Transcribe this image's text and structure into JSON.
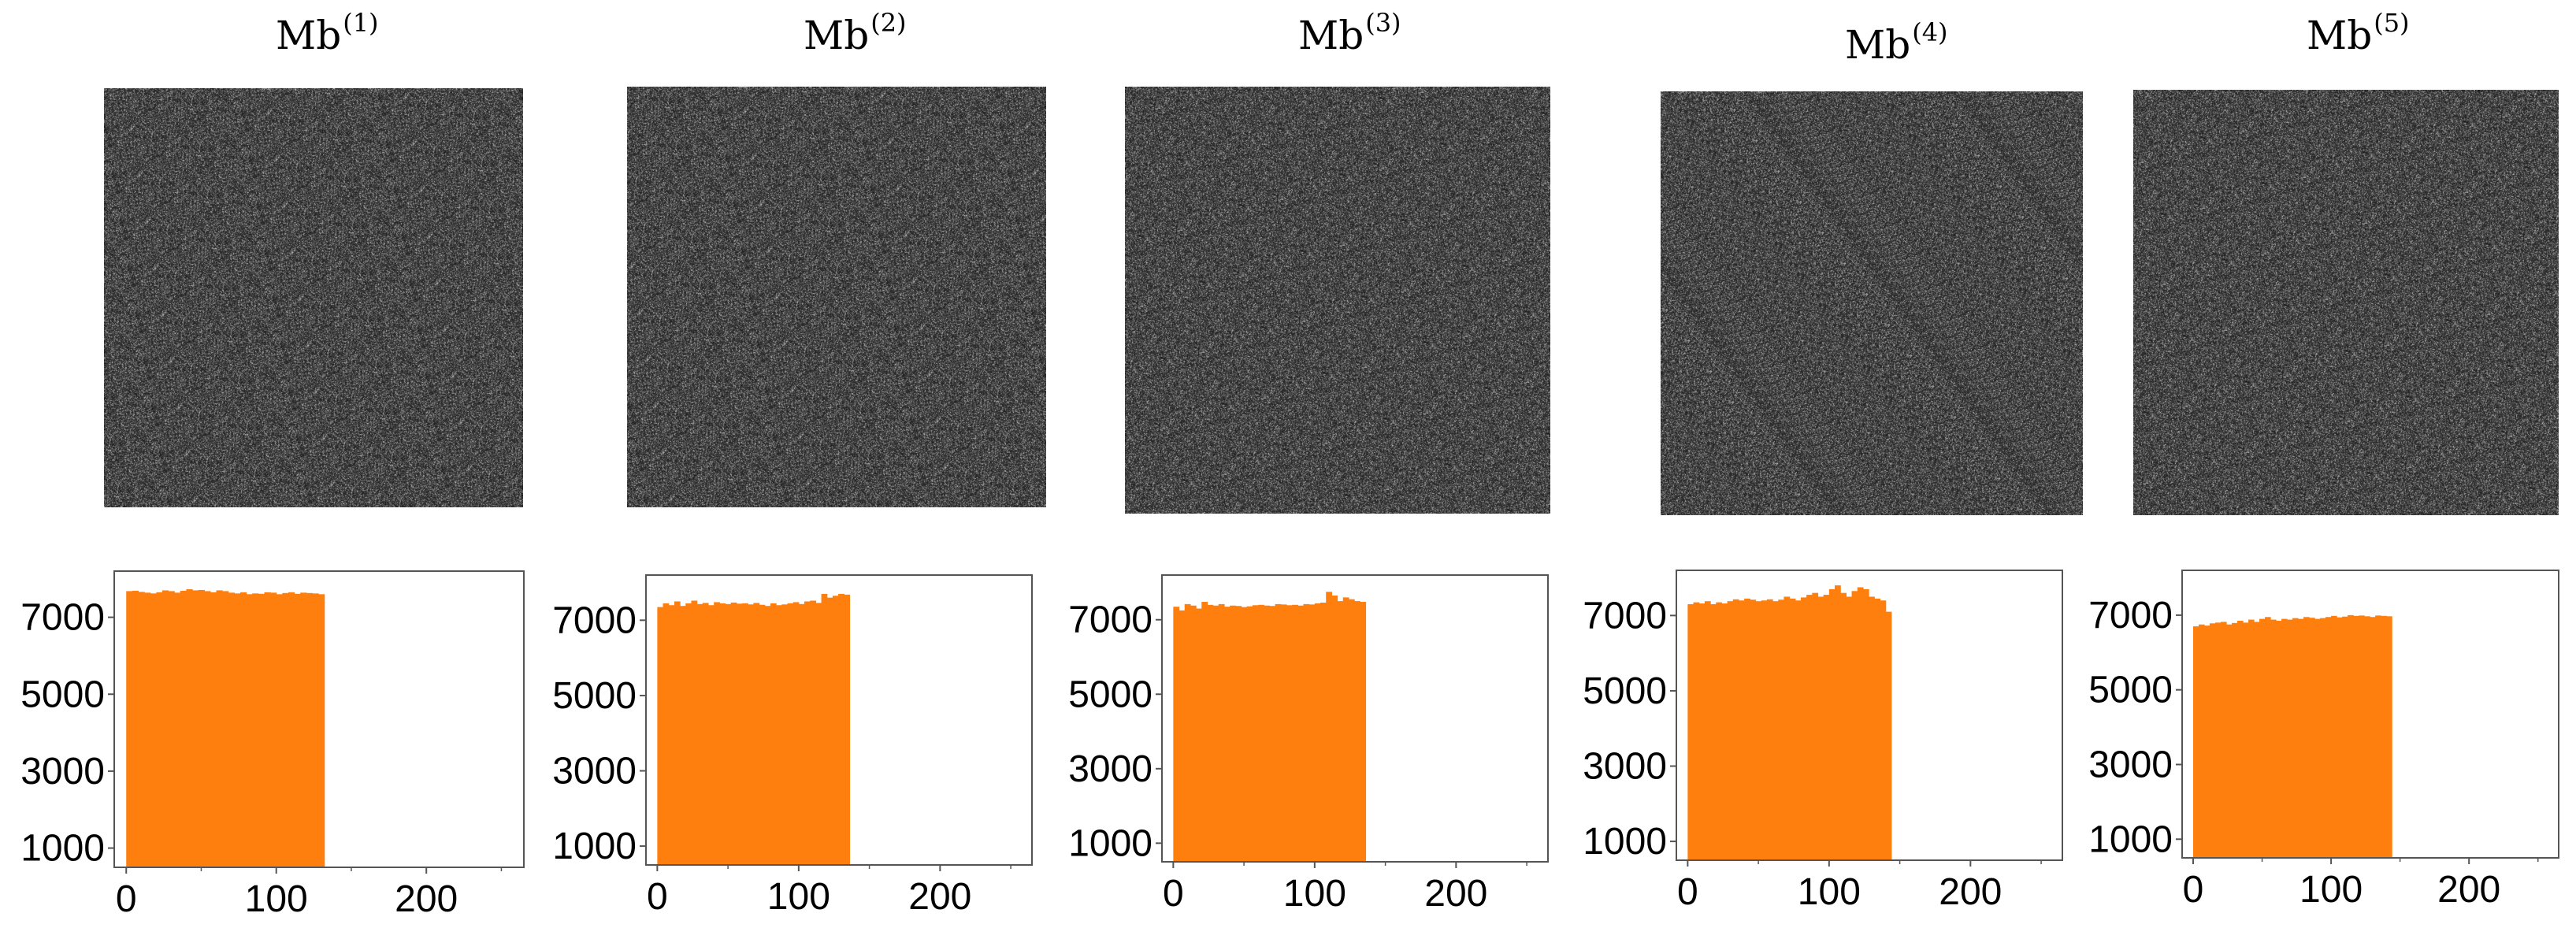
{
  "colors": {
    "bar": "#ff7f0e",
    "frame": "#555555",
    "noise_base": "#3a3a3a"
  },
  "panels": [
    {
      "title": "Mb",
      "superscript": "(1)"
    },
    {
      "title": "Mb",
      "superscript": "(2)"
    },
    {
      "title": "Mb",
      "superscript": "(3)"
    },
    {
      "title": "Mb",
      "superscript": "(4)"
    },
    {
      "title": "Mb",
      "superscript": "(5)"
    }
  ],
  "chart_data": [
    {
      "type": "bar",
      "title": "",
      "xlabel": "",
      "ylabel": "",
      "xlim": [
        -8,
        265
      ],
      "ylim": [
        500,
        8200
      ],
      "xticks": [
        0,
        100,
        200
      ],
      "yticks": [
        1000,
        3000,
        5000,
        7000
      ],
      "bin_width": 4,
      "x": [
        0,
        4,
        8,
        12,
        16,
        20,
        24,
        28,
        32,
        36,
        40,
        44,
        48,
        52,
        56,
        60,
        64,
        68,
        72,
        76,
        80,
        84,
        88,
        92,
        96,
        100,
        104,
        108,
        112,
        116,
        120,
        124,
        128
      ],
      "values": [
        7680,
        7690,
        7660,
        7640,
        7620,
        7650,
        7700,
        7680,
        7640,
        7690,
        7730,
        7700,
        7710,
        7680,
        7650,
        7700,
        7680,
        7640,
        7620,
        7650,
        7600,
        7620,
        7610,
        7650,
        7640,
        7600,
        7630,
        7650,
        7610,
        7640,
        7630,
        7620,
        7600
      ]
    },
    {
      "type": "bar",
      "title": "",
      "xlabel": "",
      "ylabel": "",
      "xlim": [
        -8,
        265
      ],
      "ylim": [
        500,
        8200
      ],
      "xticks": [
        0,
        100,
        200
      ],
      "yticks": [
        1000,
        3000,
        5000,
        7000
      ],
      "bin_width": 4,
      "x": [
        0,
        4,
        8,
        12,
        16,
        20,
        24,
        28,
        32,
        36,
        40,
        44,
        48,
        52,
        56,
        60,
        64,
        68,
        72,
        76,
        80,
        84,
        88,
        92,
        96,
        100,
        104,
        108,
        112,
        116,
        120,
        124,
        128,
        132
      ],
      "values": [
        7350,
        7450,
        7400,
        7500,
        7380,
        7450,
        7520,
        7430,
        7460,
        7400,
        7480,
        7450,
        7430,
        7470,
        7440,
        7450,
        7420,
        7460,
        7410,
        7380,
        7450,
        7400,
        7420,
        7450,
        7480,
        7430,
        7500,
        7520,
        7460,
        7700,
        7600,
        7650,
        7700,
        7680
      ]
    },
    {
      "type": "bar",
      "title": "",
      "xlabel": "",
      "ylabel": "",
      "xlim": [
        -8,
        265
      ],
      "ylim": [
        500,
        8200
      ],
      "xticks": [
        0,
        100,
        200
      ],
      "yticks": [
        1000,
        3000,
        5000,
        7000
      ],
      "bin_width": 4,
      "x": [
        0,
        4,
        8,
        12,
        16,
        20,
        24,
        28,
        32,
        36,
        40,
        44,
        48,
        52,
        56,
        60,
        64,
        68,
        72,
        76,
        80,
        84,
        88,
        92,
        96,
        100,
        104,
        108,
        112,
        116,
        120,
        124,
        128,
        132
      ],
      "values": [
        7350,
        7250,
        7420,
        7380,
        7300,
        7480,
        7400,
        7380,
        7420,
        7350,
        7380,
        7370,
        7340,
        7360,
        7390,
        7400,
        7380,
        7370,
        7420,
        7410,
        7390,
        7400,
        7380,
        7420,
        7410,
        7440,
        7460,
        7750,
        7650,
        7500,
        7600,
        7550,
        7500,
        7480
      ]
    },
    {
      "type": "bar",
      "title": "",
      "xlabel": "",
      "ylabel": "",
      "xlim": [
        -8,
        265
      ],
      "ylim": [
        500,
        8200
      ],
      "xticks": [
        0,
        100,
        200
      ],
      "yticks": [
        1000,
        3000,
        5000,
        7000
      ],
      "bin_width": 4,
      "x": [
        0,
        4,
        8,
        12,
        16,
        20,
        24,
        28,
        32,
        36,
        40,
        44,
        48,
        52,
        56,
        60,
        64,
        68,
        72,
        76,
        80,
        84,
        88,
        92,
        96,
        100,
        104,
        108,
        112,
        116,
        120,
        124,
        128,
        132,
        136,
        140
      ],
      "values": [
        7300,
        7350,
        7320,
        7380,
        7300,
        7350,
        7320,
        7380,
        7430,
        7400,
        7450,
        7420,
        7380,
        7400,
        7430,
        7380,
        7420,
        7500,
        7450,
        7400,
        7480,
        7550,
        7600,
        7500,
        7550,
        7700,
        7800,
        7600,
        7500,
        7650,
        7750,
        7700,
        7500,
        7450,
        7400,
        7100
      ]
    },
    {
      "type": "bar",
      "title": "",
      "xlabel": "",
      "ylabel": "",
      "xlim": [
        -8,
        265
      ],
      "ylim": [
        500,
        8200
      ],
      "xticks": [
        0,
        100,
        200
      ],
      "yticks": [
        1000,
        3000,
        5000,
        7000
      ],
      "bin_width": 4,
      "x": [
        0,
        4,
        8,
        12,
        16,
        20,
        24,
        28,
        32,
        36,
        40,
        44,
        48,
        52,
        56,
        60,
        64,
        68,
        72,
        76,
        80,
        84,
        88,
        92,
        96,
        100,
        104,
        108,
        112,
        116,
        120,
        124,
        128,
        132,
        136,
        140
      ],
      "values": [
        6700,
        6750,
        6720,
        6780,
        6800,
        6820,
        6750,
        6790,
        6850,
        6800,
        6880,
        6820,
        6900,
        6950,
        6880,
        6850,
        6900,
        6880,
        6920,
        6900,
        6950,
        6930,
        6900,
        6920,
        6950,
        6980,
        6940,
        6960,
        7000,
        6980,
        6990,
        6970,
        6950,
        6990,
        6980,
        6970
      ]
    }
  ]
}
